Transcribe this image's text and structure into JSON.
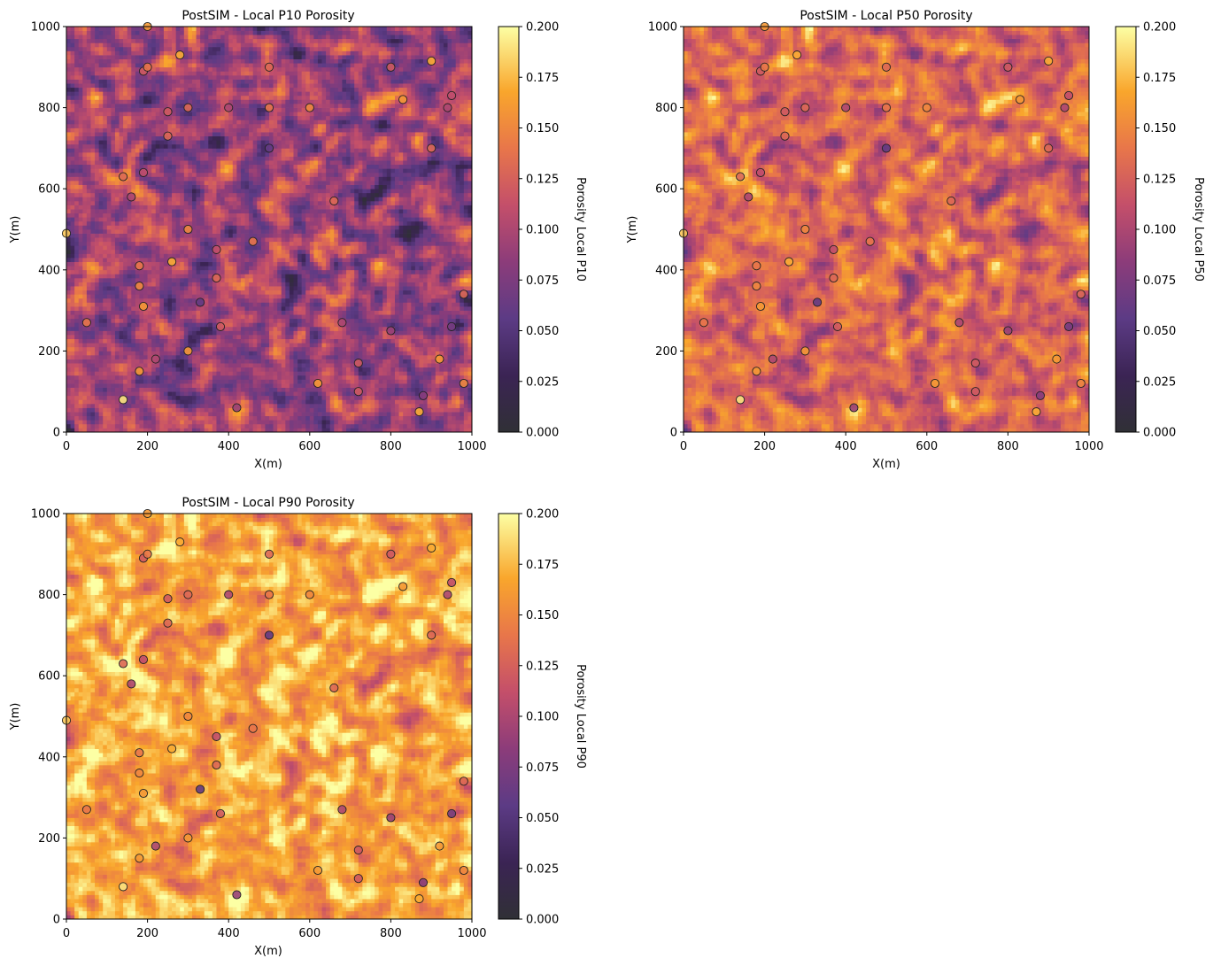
{
  "chart_data": [
    {
      "type": "heatmap",
      "title": "PostSIM - Local P10 Porosity",
      "xlabel": "X(m)",
      "ylabel": "Y(m)",
      "colorbar_label": "Porosity Local P10",
      "xlim": [
        0,
        1000
      ],
      "ylim": [
        0,
        1000
      ],
      "clim": [
        0.0,
        0.2
      ],
      "colormap": "inferno",
      "grid_cells": [
        100,
        100
      ],
      "field_mean": 0.09,
      "field_spread": 0.025,
      "xticks": [
        "0",
        "200",
        "400",
        "600",
        "800",
        "1000"
      ],
      "yticks": [
        "0",
        "200",
        "400",
        "600",
        "800",
        "1000"
      ],
      "cbar_ticks": [
        "0.000",
        "0.025",
        "0.050",
        "0.075",
        "0.100",
        "0.125",
        "0.150",
        "0.175",
        "0.200"
      ],
      "well_values": [
        0.18,
        0.14,
        0.19,
        0.13,
        0.1,
        0.16,
        0.15,
        0.14,
        0.16,
        0.11,
        0.12,
        0.14,
        0.16,
        0.1,
        0.13,
        0.12,
        0.17,
        0.17,
        0.16,
        0.15,
        0.13,
        0.06,
        0.13,
        0.11,
        0.12,
        0.1,
        0.09,
        0.14,
        0.06,
        0.14,
        0.13,
        0.15,
        0.16,
        0.13,
        0.1,
        0.12,
        0.12,
        0.09,
        0.12,
        0.16,
        0.17,
        0.08,
        0.13,
        0.17,
        0.16,
        0.1,
        0.07,
        0.11,
        0.15,
        0.13
      ]
    },
    {
      "type": "heatmap",
      "title": "PostSIM - Local P50 Porosity",
      "xlabel": "X(m)",
      "ylabel": "Y(m)",
      "colorbar_label": "Porosity Local P50",
      "xlim": [
        0,
        1000
      ],
      "ylim": [
        0,
        1000
      ],
      "clim": [
        0.0,
        0.2
      ],
      "colormap": "inferno",
      "grid_cells": [
        100,
        100
      ],
      "field_mean": 0.13,
      "field_spread": 0.02,
      "xticks": [
        "0",
        "200",
        "400",
        "600",
        "800",
        "1000"
      ],
      "yticks": [
        "0",
        "200",
        "400",
        "600",
        "800",
        "1000"
      ],
      "cbar_ticks": [
        "0.000",
        "0.025",
        "0.050",
        "0.075",
        "0.100",
        "0.125",
        "0.150",
        "0.175",
        "0.200"
      ],
      "well_values": [
        0.18,
        0.14,
        0.19,
        0.13,
        0.1,
        0.16,
        0.15,
        0.14,
        0.16,
        0.11,
        0.12,
        0.14,
        0.16,
        0.1,
        0.13,
        0.12,
        0.17,
        0.17,
        0.16,
        0.15,
        0.13,
        0.06,
        0.13,
        0.11,
        0.12,
        0.1,
        0.09,
        0.14,
        0.06,
        0.14,
        0.13,
        0.15,
        0.16,
        0.13,
        0.1,
        0.12,
        0.12,
        0.09,
        0.12,
        0.16,
        0.17,
        0.08,
        0.13,
        0.17,
        0.16,
        0.1,
        0.07,
        0.11,
        0.15,
        0.13
      ]
    },
    {
      "type": "heatmap",
      "title": "PostSIM - Local P90 Porosity",
      "xlabel": "X(m)",
      "ylabel": "Y(m)",
      "colorbar_label": "Porosity Local P90",
      "xlim": [
        0,
        1000
      ],
      "ylim": [
        0,
        1000
      ],
      "clim": [
        0.0,
        0.2
      ],
      "colormap": "inferno",
      "grid_cells": [
        100,
        100
      ],
      "field_mean": 0.165,
      "field_spread": 0.018,
      "xticks": [
        "0",
        "200",
        "400",
        "600",
        "800",
        "1000"
      ],
      "yticks": [
        "0",
        "200",
        "400",
        "600",
        "800",
        "1000"
      ],
      "cbar_ticks": [
        "0.000",
        "0.025",
        "0.050",
        "0.075",
        "0.100",
        "0.125",
        "0.150",
        "0.175",
        "0.200"
      ],
      "well_values": [
        0.18,
        0.14,
        0.19,
        0.13,
        0.1,
        0.16,
        0.15,
        0.14,
        0.16,
        0.11,
        0.12,
        0.14,
        0.16,
        0.1,
        0.13,
        0.12,
        0.17,
        0.17,
        0.16,
        0.15,
        0.13,
        0.06,
        0.13,
        0.11,
        0.12,
        0.1,
        0.09,
        0.14,
        0.06,
        0.14,
        0.13,
        0.15,
        0.16,
        0.13,
        0.1,
        0.12,
        0.12,
        0.09,
        0.12,
        0.16,
        0.17,
        0.08,
        0.13,
        0.17,
        0.16,
        0.1,
        0.07,
        0.11,
        0.15,
        0.13
      ]
    }
  ],
  "wells": [
    {
      "x": 0,
      "y": 490
    },
    {
      "x": 50,
      "y": 270
    },
    {
      "x": 140,
      "y": 80
    },
    {
      "x": 140,
      "y": 630
    },
    {
      "x": 160,
      "y": 580
    },
    {
      "x": 180,
      "y": 150
    },
    {
      "x": 180,
      "y": 360
    },
    {
      "x": 180,
      "y": 410
    },
    {
      "x": 190,
      "y": 310
    },
    {
      "x": 190,
      "y": 640
    },
    {
      "x": 190,
      "y": 890
    },
    {
      "x": 200,
      "y": 900
    },
    {
      "x": 200,
      "y": 1000
    },
    {
      "x": 220,
      "y": 180
    },
    {
      "x": 250,
      "y": 730
    },
    {
      "x": 250,
      "y": 790
    },
    {
      "x": 260,
      "y": 420
    },
    {
      "x": 280,
      "y": 930
    },
    {
      "x": 300,
      "y": 200
    },
    {
      "x": 300,
      "y": 500
    },
    {
      "x": 300,
      "y": 800
    },
    {
      "x": 330,
      "y": 320
    },
    {
      "x": 370,
      "y": 380
    },
    {
      "x": 370,
      "y": 450
    },
    {
      "x": 380,
      "y": 260
    },
    {
      "x": 400,
      "y": 800
    },
    {
      "x": 420,
      "y": 60
    },
    {
      "x": 460,
      "y": 470
    },
    {
      "x": 500,
      "y": 700
    },
    {
      "x": 500,
      "y": 800
    },
    {
      "x": 500,
      "y": 900
    },
    {
      "x": 600,
      "y": 800
    },
    {
      "x": 620,
      "y": 120
    },
    {
      "x": 660,
      "y": 570
    },
    {
      "x": 680,
      "y": 270
    },
    {
      "x": 720,
      "y": 100
    },
    {
      "x": 720,
      "y": 170
    },
    {
      "x": 800,
      "y": 250
    },
    {
      "x": 800,
      "y": 900
    },
    {
      "x": 830,
      "y": 820
    },
    {
      "x": 870,
      "y": 50
    },
    {
      "x": 880,
      "y": 90
    },
    {
      "x": 900,
      "y": 700
    },
    {
      "x": 900,
      "y": 915
    },
    {
      "x": 920,
      "y": 180
    },
    {
      "x": 940,
      "y": 800
    },
    {
      "x": 950,
      "y": 260
    },
    {
      "x": 950,
      "y": 830
    },
    {
      "x": 980,
      "y": 120
    },
    {
      "x": 980,
      "y": 340
    }
  ]
}
